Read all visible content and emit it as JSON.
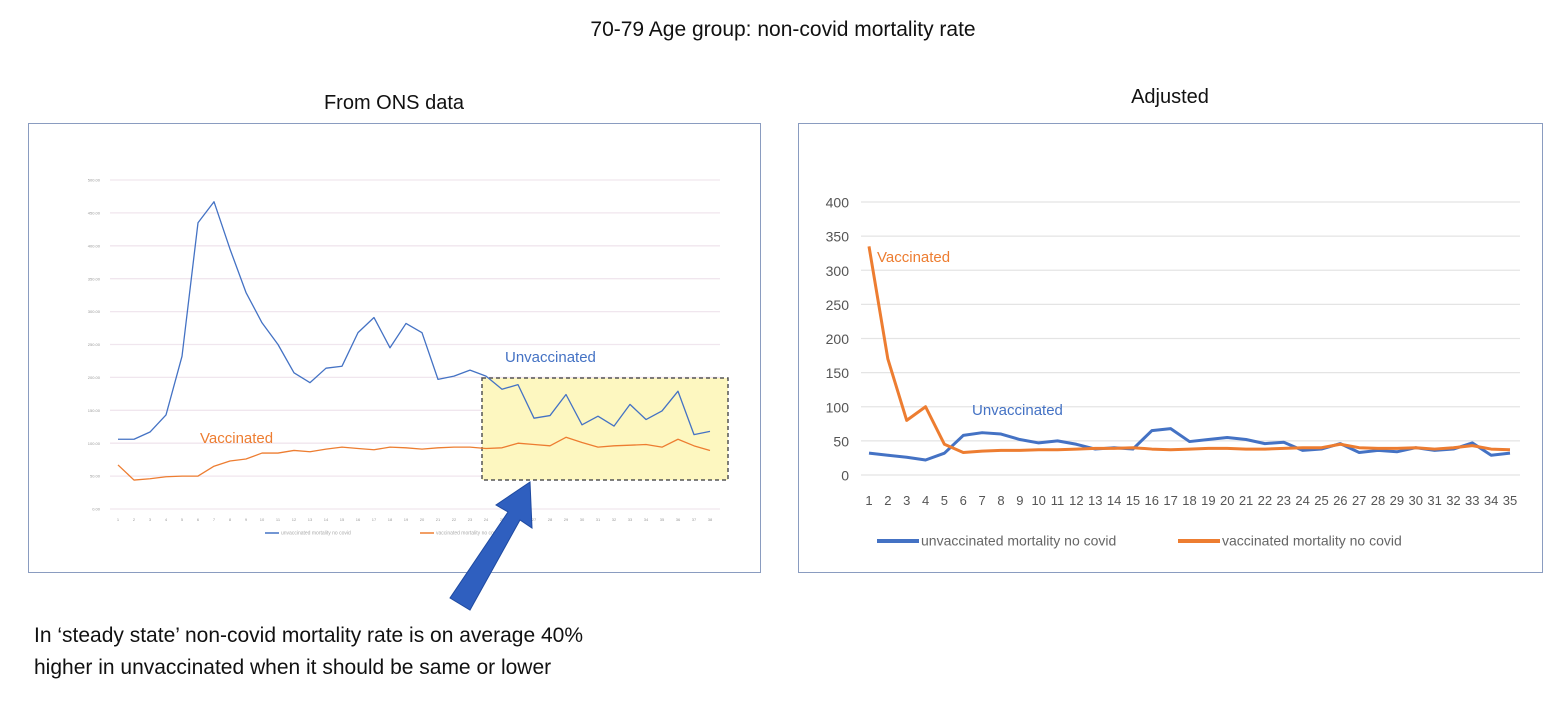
{
  "title": "70-79 Age group: non-covid mortality rate",
  "left_heading": "From ONS data",
  "right_heading": "Adjusted",
  "note_lines": [
    "In ‘steady state’ non-covid mortality rate is on average 40%",
    "higher in unvaccinated when it should be same or lower"
  ],
  "colors": {
    "unvaccinated": "#4472c4",
    "vaccinated": "#ed7d31",
    "highlight": "#fdf7c0",
    "arrow": "#2f5fbf"
  },
  "icons": {
    "pointer": "arrow-icon"
  },
  "chart_data": [
    {
      "type": "line",
      "title": "From ONS data",
      "ylim": [
        0,
        500
      ],
      "yticks": [
        "0.00",
        "50.00",
        "100.00",
        "150.00",
        "200.00",
        "250.00",
        "300.00",
        "350.00",
        "400.00",
        "450.00",
        "500.00"
      ],
      "x": [
        1,
        2,
        3,
        4,
        5,
        6,
        7,
        8,
        9,
        10,
        11,
        12,
        13,
        14,
        15,
        16,
        17,
        18,
        19,
        20,
        21,
        22,
        23,
        24,
        25,
        26,
        27,
        28,
        29,
        30,
        31,
        32,
        33,
        34,
        35,
        36,
        37,
        38
      ],
      "grid": true,
      "legend": "bottom",
      "annotations": [
        "Unvaccinated",
        "Vaccinated"
      ],
      "highlight_box": {
        "x_from": 24,
        "x_to": 38
      },
      "series": [
        {
          "name": "unvaccinated mortality no covid",
          "values": [
            106,
            106,
            117,
            143,
            232,
            435,
            467,
            395,
            329,
            283,
            250,
            207,
            192,
            214,
            217,
            268,
            291,
            245,
            282,
            268,
            197,
            202,
            211,
            202,
            182,
            189,
            138,
            142,
            174,
            128,
            141,
            126,
            159,
            136,
            149,
            179,
            113,
            118
          ]
        },
        {
          "name": "vaccinated mortality no covid",
          "values": [
            67,
            44,
            46,
            49,
            50,
            50,
            65,
            73,
            76,
            85,
            85,
            89,
            87,
            91,
            94,
            92,
            90,
            94,
            93,
            91,
            93,
            94,
            94,
            92,
            93,
            100,
            98,
            96,
            109,
            101,
            94,
            96,
            97,
            98,
            94,
            106,
            96,
            89
          ]
        }
      ]
    },
    {
      "type": "line",
      "title": "Adjusted",
      "ylim": [
        0,
        400
      ],
      "yticks": [
        "0",
        "50",
        "100",
        "150",
        "200",
        "250",
        "300",
        "350",
        "400"
      ],
      "x": [
        1,
        2,
        3,
        4,
        5,
        6,
        7,
        8,
        9,
        10,
        11,
        12,
        13,
        14,
        15,
        16,
        17,
        18,
        19,
        20,
        21,
        22,
        23,
        24,
        25,
        26,
        27,
        28,
        29,
        30,
        31,
        32,
        33,
        34,
        35
      ],
      "grid": true,
      "legend": "bottom",
      "annotations": [
        "Vaccinated",
        "Unvaccinated"
      ],
      "series": [
        {
          "name": "unvaccinated mortality no covid",
          "values": [
            32,
            29,
            26,
            22,
            32,
            58,
            62,
            60,
            52,
            47,
            50,
            45,
            38,
            40,
            38,
            65,
            68,
            49,
            52,
            55,
            52,
            46,
            48,
            36,
            38,
            46,
            33,
            36,
            34,
            40,
            36,
            38,
            47,
            29,
            32
          ]
        },
        {
          "name": "vaccinated mortality no covid",
          "values": [
            335,
            170,
            80,
            100,
            45,
            33,
            35,
            36,
            36,
            37,
            37,
            38,
            39,
            39,
            40,
            38,
            37,
            38,
            39,
            39,
            38,
            38,
            39,
            40,
            40,
            45,
            40,
            39,
            39,
            40,
            38,
            40,
            43,
            38,
            37
          ]
        }
      ]
    }
  ]
}
